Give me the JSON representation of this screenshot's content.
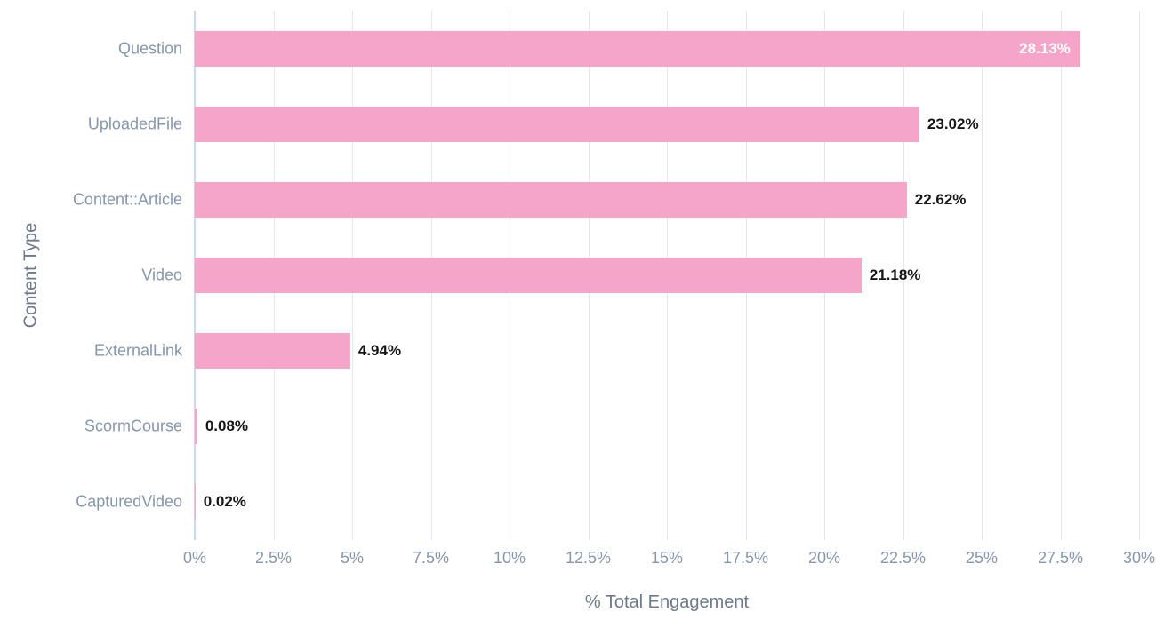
{
  "chart_data": {
    "type": "bar",
    "orientation": "horizontal",
    "xlabel": "% Total Engagement",
    "ylabel": "Content Type",
    "categories": [
      "Question",
      "UploadedFile",
      "Content::Article",
      "Video",
      "ExternalLink",
      "ScormCourse",
      "CapturedVideo"
    ],
    "values": [
      28.13,
      23.02,
      22.62,
      21.18,
      4.94,
      0.08,
      0.02
    ],
    "value_labels": [
      "28.13%",
      "23.02%",
      "22.62%",
      "21.18%",
      "4.94%",
      "0.08%",
      "0.02%"
    ],
    "value_label_placement": [
      "inside",
      "outside",
      "outside",
      "outside",
      "outside",
      "outside",
      "outside"
    ],
    "xlim": [
      0,
      30
    ],
    "x_tick_values": [
      0,
      2.5,
      5,
      7.5,
      10,
      12.5,
      15,
      17.5,
      20,
      22.5,
      25,
      27.5,
      30
    ],
    "x_tick_labels": [
      "0%",
      "2.5%",
      "5%",
      "7.5%",
      "10%",
      "12.5%",
      "15%",
      "17.5%",
      "20%",
      "22.5%",
      "25%",
      "27.5%",
      "30%"
    ],
    "grid": "vertical-gridlines-on",
    "legend": "none",
    "colors": {
      "bar": "#f5a5c7",
      "value_label_inside": "#ffffff",
      "value_label_outside": "#161616",
      "axis_line": "#ccd7eb",
      "gridline": "#e7e7e9",
      "category_label": "#8697ab",
      "tick_label": "#8697ab",
      "axis_title": "#6d7a8b",
      "background": "#ffffff"
    }
  }
}
